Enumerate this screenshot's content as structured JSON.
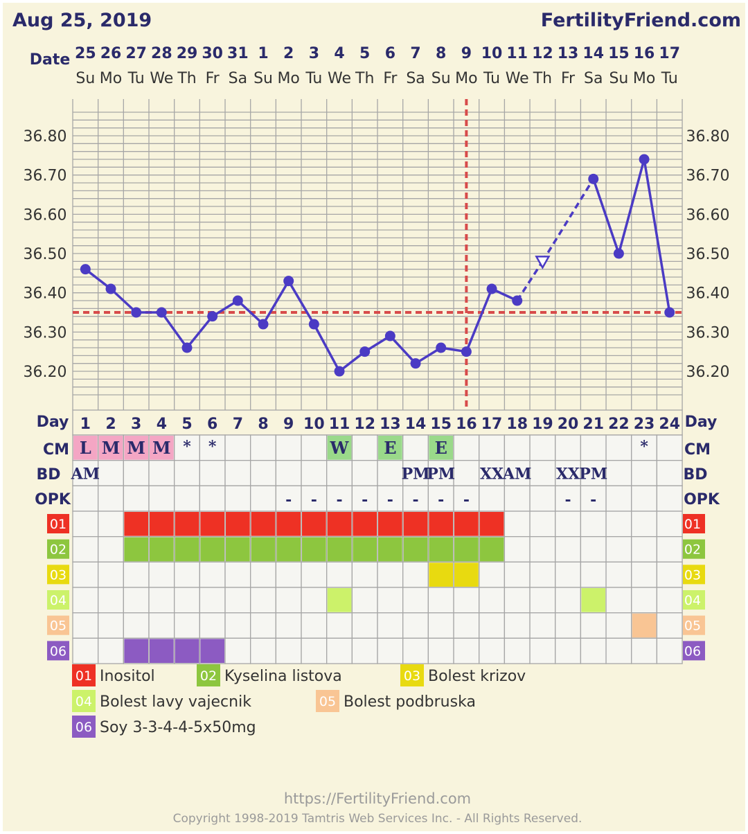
{
  "header": {
    "date": "Aug 25, 2019",
    "site": "FertilityFriend.com"
  },
  "labels": {
    "date_row": "Date",
    "day_row": "Day",
    "cm": "CM",
    "bd": "BD",
    "opk": "OPK"
  },
  "colors": {
    "background": "#f8f4dd",
    "grid": "#a6a6a6",
    "line": "#4b3bc4",
    "coverline": "#d74b4b"
  },
  "chart_data": {
    "type": "line",
    "title": "",
    "xlabel": "Day",
    "ylabel": "",
    "ylim": [
      36.1,
      36.9
    ],
    "y_ticks": [
      "36.80",
      "36.70",
      "36.60",
      "36.50",
      "36.40",
      "36.30",
      "36.20"
    ],
    "coverline": 36.35,
    "ovulation_day": 16,
    "dates": [
      "25",
      "26",
      "27",
      "28",
      "29",
      "30",
      "31",
      "1",
      "2",
      "3",
      "4",
      "5",
      "6",
      "7",
      "8",
      "9",
      "10",
      "11",
      "12",
      "13",
      "14",
      "15",
      "16",
      "17"
    ],
    "weekdays": [
      "Su",
      "Mo",
      "Tu",
      "We",
      "Th",
      "Fr",
      "Sa",
      "Su",
      "Mo",
      "Tu",
      "We",
      "Th",
      "Fr",
      "Sa",
      "Su",
      "Mo",
      "Tu",
      "We",
      "Th",
      "Fr",
      "Sa",
      "Su",
      "Mo",
      "Tu"
    ],
    "cycle_days": [
      "1",
      "2",
      "3",
      "4",
      "5",
      "6",
      "7",
      "8",
      "9",
      "10",
      "11",
      "12",
      "13",
      "14",
      "15",
      "16",
      "17",
      "18",
      "19",
      "20",
      "21",
      "22",
      "23",
      "24"
    ],
    "temperatures": [
      36.46,
      36.41,
      36.35,
      36.35,
      36.26,
      36.34,
      36.38,
      36.32,
      36.43,
      36.32,
      36.2,
      36.25,
      36.29,
      36.22,
      36.26,
      36.25,
      36.41,
      36.38,
      36.48,
      null,
      36.69,
      36.5,
      36.74,
      36.35
    ],
    "discarded_days": [
      19
    ]
  },
  "cm_row": [
    {
      "day": 1,
      "text": "L",
      "color": "#f4a6c4"
    },
    {
      "day": 2,
      "text": "M",
      "color": "#f4a6c4"
    },
    {
      "day": 3,
      "text": "M",
      "color": "#f4a6c4"
    },
    {
      "day": 4,
      "text": "M",
      "color": "#f4a6c4"
    },
    {
      "day": 5,
      "text": "*",
      "color": ""
    },
    {
      "day": 6,
      "text": "*",
      "color": ""
    },
    {
      "day": 11,
      "text": "W",
      "color": "#9ad98a"
    },
    {
      "day": 13,
      "text": "E",
      "color": "#9ad98a"
    },
    {
      "day": 15,
      "text": "E",
      "color": "#9ad98a"
    },
    {
      "day": 23,
      "text": "*",
      "color": ""
    }
  ],
  "bd_row": [
    {
      "day": 1,
      "text": "AM"
    },
    {
      "day": 14,
      "text": "PM"
    },
    {
      "day": 15,
      "text": "PM"
    },
    {
      "day": 17,
      "text": "XX"
    },
    {
      "day": 18,
      "text": "AM"
    },
    {
      "day": 20,
      "text": "XX"
    },
    {
      "day": 21,
      "text": "PM"
    }
  ],
  "opk_row": [
    {
      "day": 9,
      "text": "-"
    },
    {
      "day": 10,
      "text": "-"
    },
    {
      "day": 11,
      "text": "-"
    },
    {
      "day": 12,
      "text": "-"
    },
    {
      "day": 13,
      "text": "-"
    },
    {
      "day": 14,
      "text": "-"
    },
    {
      "day": 15,
      "text": "-"
    },
    {
      "day": 16,
      "text": "-"
    },
    {
      "day": 20,
      "text": "-"
    },
    {
      "day": 21,
      "text": "-"
    }
  ],
  "custom_rows": [
    {
      "code": "01",
      "name": "Inositol",
      "color": "#ee3124",
      "days": [
        3,
        4,
        5,
        6,
        7,
        8,
        9,
        10,
        11,
        12,
        13,
        14,
        15,
        16,
        17
      ]
    },
    {
      "code": "02",
      "name": "Kyselina listova",
      "color": "#8dc63f",
      "days": [
        3,
        4,
        5,
        6,
        7,
        8,
        9,
        10,
        11,
        12,
        13,
        14,
        15,
        16,
        17
      ]
    },
    {
      "code": "03",
      "name": "Bolest krizov",
      "color": "#e8da10",
      "days": [
        15,
        16
      ]
    },
    {
      "code": "04",
      "name": "Bolest lavy vajecnik",
      "color": "#ccf26a",
      "days": [
        11,
        21
      ]
    },
    {
      "code": "05",
      "name": "Bolest podbruska",
      "color": "#f9c594",
      "days": [
        23
      ]
    },
    {
      "code": "06",
      "name": "Soy 3-3-4-4-5x50mg",
      "color": "#8c5bc2",
      "days": [
        3,
        4,
        5,
        6
      ]
    }
  ],
  "footer": {
    "url": "https://FertilityFriend.com",
    "copyright": "Copyright 1998-2019 Tamtris Web Services Inc. - All Rights Reserved."
  }
}
